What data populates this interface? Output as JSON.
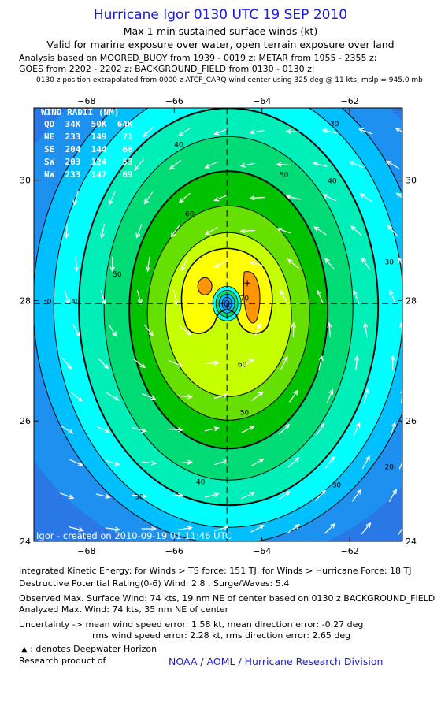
{
  "header": {
    "title": "Hurricane Igor 0130 UTC 19 SEP 2010",
    "subtitle1": "Max 1-min sustained surface winds (kt)",
    "subtitle2": "Valid for marine exposure over water, open terrain exposure over land",
    "analysis_line1": "Analysis based on MOORED_BUOY from 1939 - 0019 z; METAR from 1955 - 2355 z;",
    "analysis_line2": "GOES from 2202 - 2202 z; BACKGROUND_FIELD from 0130 - 0130 z;",
    "position_note": "0130 z position extrapolated from 0000 z ATCF_CARQ wind center using 325 deg @ 11 kts; mslp = 945.0 mb"
  },
  "wind_radii": {
    "title": "WIND RADII (NM)",
    "header": "QD  34K  50K  64K",
    "rows": [
      "NE  233  149   71",
      "SE  204  144   66",
      "SW  203  124   53",
      "NW  233  147   69"
    ]
  },
  "plot_footer": "Igor - created on 2010-09-19 01:11:46 UTC",
  "footer": {
    "ike": "Integrated Kinetic Energy:  for Winds > TS force: 151 TJ,  for Winds > Hurricane Force: 18 TJ",
    "dpr": "Destructive Potential Rating(0-6)   Wind: 2.8 , Surge/Waves: 5.4",
    "observed_max": "Observed Max. Surface Wind: 74 kts, 19 nm NE of center based on 0130 z BACKGROUND_FIELD",
    "analyzed_max": "Analyzed Max. Wind: 74 kts, 35 nm NE of center",
    "uncertainty1": "Uncertainty -> mean wind speed error: 1.58 kt,   mean direction error:  -0.27 deg",
    "uncertainty2": "rms wind speed error: 2.28 kt,   rms direction error: 2.65 deg",
    "deepwater": ": denotes Deepwater Horizon",
    "research": "Research product of",
    "noaa": "NOAA / AOML / Hurricane Research Division"
  },
  "colors": {
    "levels": [
      "#2a78e6",
      "#1e90f0",
      "#00bfff",
      "#00ffff",
      "#00efb8",
      "#00db76",
      "#00c200",
      "#66e000",
      "#c6ff00",
      "#ffff00",
      "#ff9500"
    ],
    "title": "#1a1adc",
    "arrow": "#ffffff"
  },
  "chart_data": {
    "type": "contour",
    "xlim": [
      -69.2,
      -60.8
    ],
    "ylim": [
      24,
      31.2
    ],
    "x_ticks": [
      -68,
      -66,
      -64,
      -62
    ],
    "y_ticks": [
      24,
      26,
      28,
      30
    ],
    "x_tick_labels": [
      "−68",
      "−66",
      "−64",
      "−62"
    ],
    "y_tick_labels": [
      "24",
      "26",
      "28",
      "30"
    ],
    "center": {
      "lon": -64.8,
      "lat": 27.95
    },
    "contour_levels": [
      20,
      30,
      40,
      50,
      60,
      70
    ],
    "contour_labels": [
      {
        "text": "30",
        "lon": -62.35,
        "lat": 30.9
      },
      {
        "text": "40",
        "lon": -65.9,
        "lat": 30.55
      },
      {
        "text": "40",
        "lon": -62.4,
        "lat": 29.95
      },
      {
        "text": "50",
        "lon": -63.5,
        "lat": 30.05
      },
      {
        "text": "60",
        "lon": -65.65,
        "lat": 29.4
      },
      {
        "text": "50",
        "lon": -67.3,
        "lat": 28.4
      },
      {
        "text": "40",
        "lon": -68.25,
        "lat": 27.95
      },
      {
        "text": "30",
        "lon": -68.9,
        "lat": 27.95
      },
      {
        "text": "30",
        "lon": -61.1,
        "lat": 28.6
      },
      {
        "text": "60",
        "lon": -64.45,
        "lat": 26.9
      },
      {
        "text": "50",
        "lon": -64.4,
        "lat": 26.1
      },
      {
        "text": "40",
        "lon": -65.4,
        "lat": 24.95
      },
      {
        "text": "30",
        "lon": -66.8,
        "lat": 24.7
      },
      {
        "text": "30",
        "lon": -62.3,
        "lat": 24.9
      },
      {
        "text": "20",
        "lon": -61.1,
        "lat": 25.2
      },
      {
        "text": "70",
        "lon": -64.4,
        "lat": 28.0
      }
    ],
    "grid": "dashed crosshair through center"
  }
}
